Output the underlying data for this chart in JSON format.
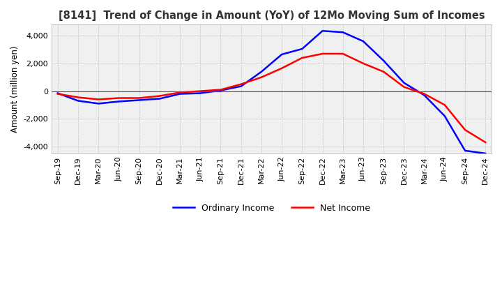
{
  "title": "[8141]  Trend of Change in Amount (YoY) of 12Mo Moving Sum of Incomes",
  "ylabel": "Amount (million yen)",
  "ylim": [
    -4500,
    4800
  ],
  "yticks": [
    -4000,
    -2000,
    0,
    2000,
    4000
  ],
  "background_color": "#ffffff",
  "plot_bg_color": "#f0f0f0",
  "grid_color": "#aaaaaa",
  "x_labels": [
    "Sep-19",
    "Dec-19",
    "Mar-20",
    "Jun-20",
    "Sep-20",
    "Dec-20",
    "Mar-21",
    "Jun-21",
    "Sep-21",
    "Dec-21",
    "Mar-22",
    "Jun-22",
    "Sep-22",
    "Dec-22",
    "Mar-23",
    "Jun-23",
    "Sep-23",
    "Dec-23",
    "Mar-24",
    "Jun-24",
    "Sep-24",
    "Dec-24"
  ],
  "ordinary_income": [
    -150,
    -700,
    -900,
    -750,
    -650,
    -550,
    -200,
    -150,
    50,
    350,
    1400,
    2650,
    3050,
    4350,
    4250,
    3600,
    2200,
    600,
    -300,
    -1800,
    -4300,
    -4500
  ],
  "net_income": [
    -200,
    -450,
    -600,
    -500,
    -500,
    -350,
    -100,
    0,
    100,
    500,
    1000,
    1650,
    2400,
    2700,
    2700,
    2000,
    1400,
    300,
    -200,
    -1000,
    -2800,
    -3700
  ],
  "ordinary_color": "#0000ff",
  "net_color": "#ff0000",
  "line_width": 1.8,
  "legend_labels": [
    "Ordinary Income",
    "Net Income"
  ]
}
